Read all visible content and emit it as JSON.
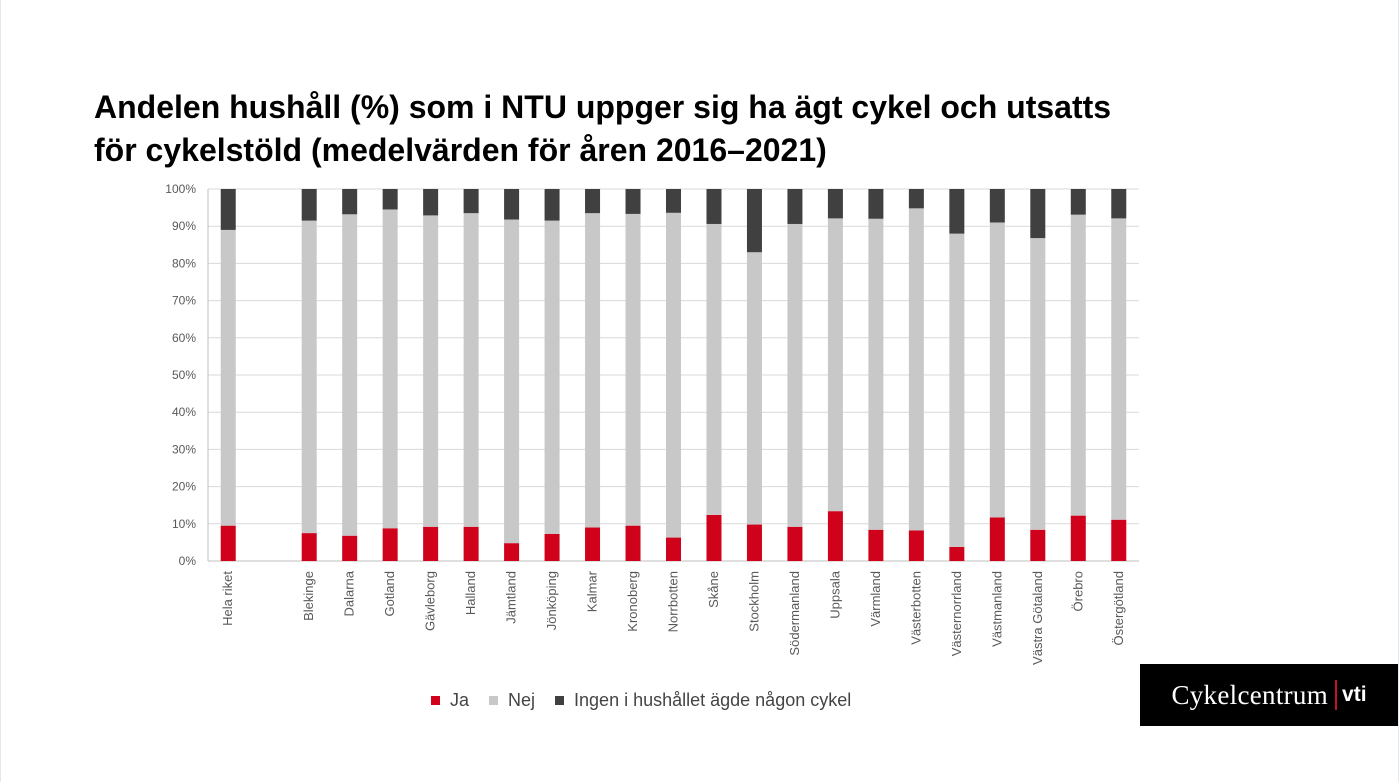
{
  "title_lines": [
    "Andelen hushåll (%) som i NTU uppger sig ha ägt cykel och utsatts",
    "för cykelstöld (medelvärden för åren 2016–2021)"
  ],
  "logo": {
    "wordmark": "Cykelcentrum",
    "sub": "vti"
  },
  "colors": {
    "ja": "#d0021b",
    "nej": "#c8c8c8",
    "ingen": "#404040",
    "grid": "#d9d9d9",
    "axis_text": "#595959"
  },
  "chart_data": {
    "type": "bar",
    "stacked": true,
    "categories": [
      "Hela riket",
      "",
      "Blekinge",
      "Dalarna",
      "Gotland",
      "Gävleborg",
      "Halland",
      "Jämtland",
      "Jönköping",
      "Kalmar",
      "Kronoberg",
      "Norrbotten",
      "Skåne",
      "Stockholm",
      "Södermanland",
      "Uppsala",
      "Värmland",
      "Västerbotten",
      "Västernorrland",
      "Västmanland",
      "Västra Götaland",
      "Örebro",
      "Östergötland"
    ],
    "series": [
      {
        "name": "Ja",
        "color": "#d0021b",
        "values": [
          9.5,
          null,
          7.5,
          6.8,
          8.8,
          9.2,
          9.2,
          4.8,
          7.3,
          9.0,
          9.5,
          6.3,
          12.4,
          9.8,
          9.2,
          13.4,
          8.4,
          8.2,
          3.8,
          11.7,
          8.4,
          12.2,
          11.1
        ]
      },
      {
        "name": "Nej",
        "color": "#c8c8c8",
        "values": [
          79.5,
          null,
          84.0,
          86.4,
          85.7,
          83.7,
          84.3,
          87.0,
          84.2,
          84.5,
          83.8,
          87.3,
          78.2,
          73.2,
          81.4,
          78.7,
          83.6,
          86.6,
          84.2,
          79.3,
          78.4,
          80.9,
          81.0
        ]
      },
      {
        "name": "Ingen i hushållet ägde någon cykel",
        "color": "#404040",
        "values": [
          11.0,
          null,
          8.5,
          6.8,
          5.5,
          7.1,
          6.5,
          8.2,
          8.5,
          6.5,
          6.7,
          6.4,
          9.4,
          17.0,
          9.4,
          7.9,
          8.0,
          5.2,
          12.0,
          9.0,
          13.2,
          6.9,
          7.9
        ]
      }
    ],
    "ylim": [
      0,
      100
    ],
    "yticks": [
      "0%",
      "10%",
      "20%",
      "30%",
      "40%",
      "50%",
      "60%",
      "70%",
      "80%",
      "90%",
      "100%"
    ],
    "grid": true,
    "legend_position": "bottom",
    "xlabel": "",
    "ylabel": ""
  }
}
